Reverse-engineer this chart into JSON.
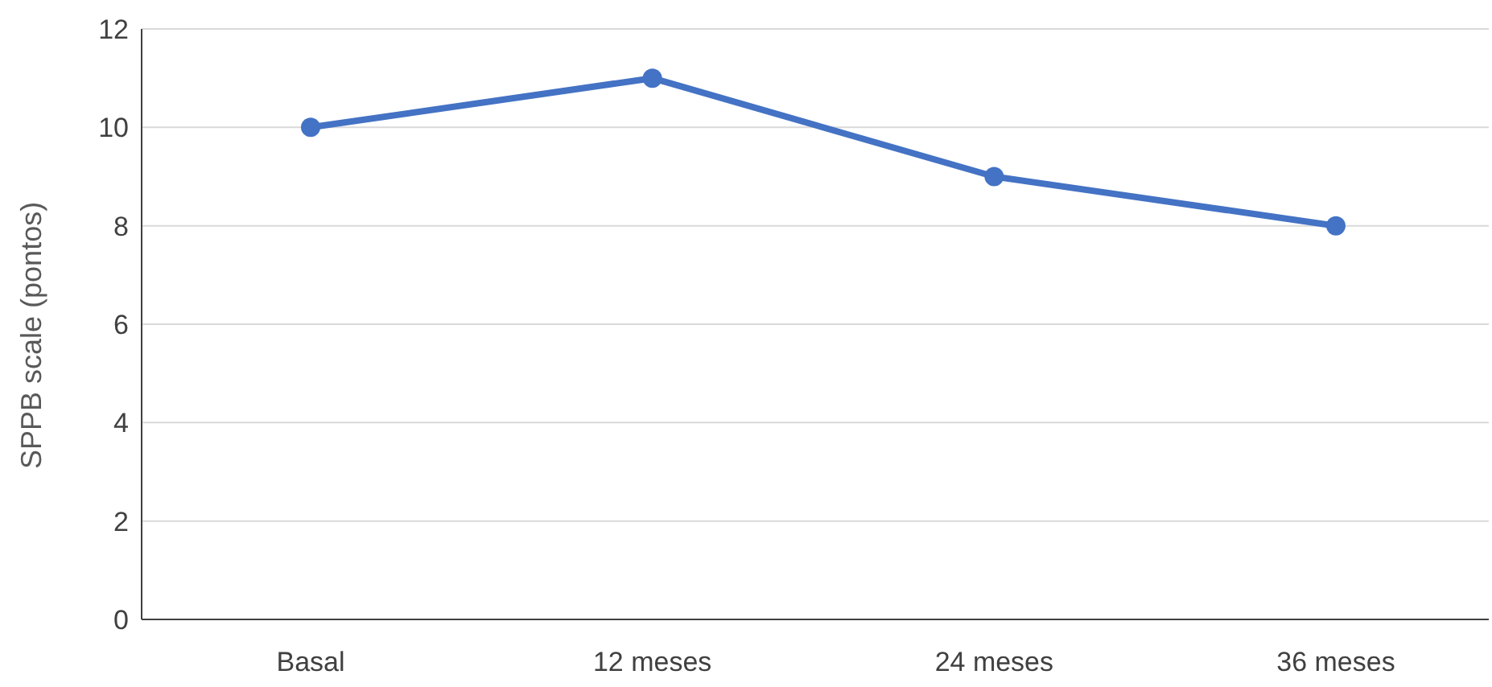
{
  "chart_data": {
    "type": "line",
    "ylabel": "SPPB scale (pontos)",
    "categories": [
      "Basal",
      "12 meses",
      "24 meses",
      "36 meses"
    ],
    "series": [
      {
        "color": "#4472c4",
        "values": [
          10,
          11,
          9,
          8
        ]
      }
    ],
    "ylim": [
      0,
      12
    ],
    "yticks": [
      0,
      2,
      4,
      6,
      8,
      10,
      12
    ],
    "grid": "y",
    "legend": false,
    "marker": "circle",
    "line_style": "solid"
  }
}
